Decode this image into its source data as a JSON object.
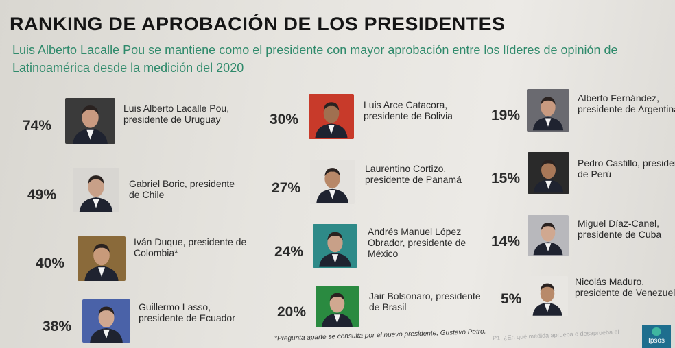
{
  "title": "RANKING DE APROBACIÓN DE LOS PRESIDENTES",
  "subtitle": "Luis Alberto Lacalle Pou se mantiene como el presidente con mayor aprobación entre los líderes de opinión de Latinoamérica desde la medición del 2020",
  "presidents": [
    {
      "pct": "74%",
      "name": "Luis Alberto Lacalle Pou, presidente de Uruguay",
      "bg": "#3a3a3a",
      "skin": "#c99a80"
    },
    {
      "pct": "49%",
      "name": "Gabriel Boric, presidente de Chile",
      "bg": "#d8d6d2",
      "skin": "#c8a088"
    },
    {
      "pct": "40%",
      "name": "Iván Duque, presidente de Colombia*",
      "bg": "#8a6a3a",
      "skin": "#c89a7a"
    },
    {
      "pct": "38%",
      "name": "Guillermo Lasso, presidente de Ecuador",
      "bg": "#4a62a8",
      "skin": "#d0a890"
    },
    {
      "pct": "30%",
      "name": "Luis Arce Catacora, presidente de Bolivia",
      "bg": "#c83a2a",
      "skin": "#a07050"
    },
    {
      "pct": "27%",
      "name": "Laurentino Cortizo, presidente de Panamá",
      "bg": "#e4e2de",
      "skin": "#b88868"
    },
    {
      "pct": "24%",
      "name": "Andrés Manuel López Obrador, presidente de México",
      "bg": "#2e8a88",
      "skin": "#c8a088"
    },
    {
      "pct": "20%",
      "name": "Jair Bolsonaro, presidente de Brasil",
      "bg": "#2a8a40",
      "skin": "#d0a890"
    },
    {
      "pct": "19%",
      "name": "Alberto Fernández, presidente de Argentina",
      "bg": "#6a6a70",
      "skin": "#c89a80"
    },
    {
      "pct": "15%",
      "name": "Pedro Castillo, presidente de Perú",
      "bg": "#2a2a2a",
      "skin": "#a87858"
    },
    {
      "pct": "14%",
      "name": "Miguel Díaz-Canel, presidente de Cuba",
      "bg": "#b8b8bc",
      "skin": "#d0a890"
    },
    {
      "pct": "5%",
      "name": "Nicolás Maduro, presidente de Venezuela",
      "bg": "#e8e6e2",
      "skin": "#b88a6a"
    }
  ],
  "footnote": "*Pregunta aparte se consulta por el nuevo presidente, Gustavo Petro.",
  "footnote_right": "P1. ¿En qué medida aprueba o desaprueba el",
  "logo": "Ipsos"
}
